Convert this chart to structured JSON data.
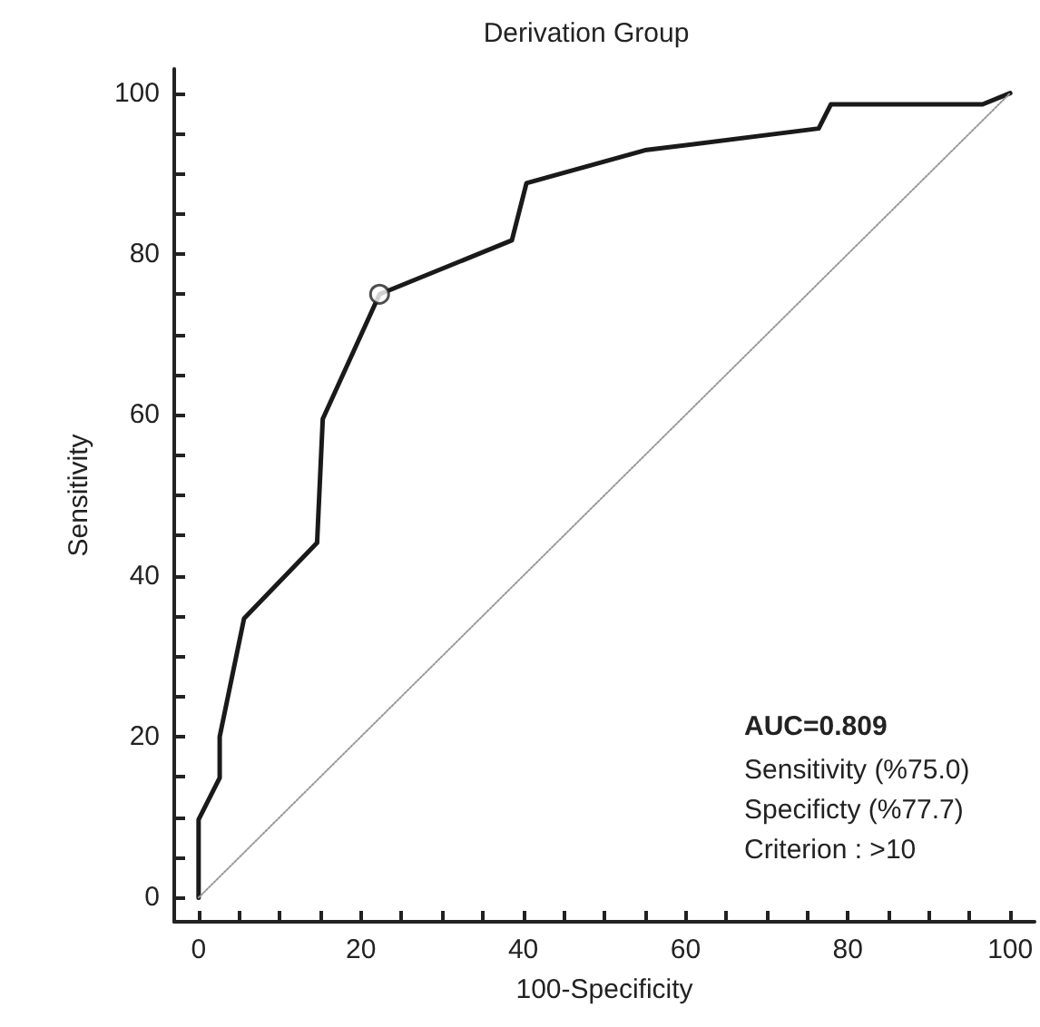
{
  "chart_data": {
    "type": "line",
    "title": "Derivation Group",
    "xlabel": "100-Specificity",
    "ylabel": "Sensitivity",
    "xlim": [
      -3,
      103
    ],
    "ylim": [
      -3,
      103
    ],
    "xticks": [
      0,
      {
        "value": 5,
        "label": null
      },
      {
        "value": 10,
        "label": null
      },
      {
        "value": 15,
        "label": null
      },
      20,
      {
        "value": 25,
        "label": null
      },
      {
        "value": 30,
        "label": null
      },
      {
        "value": 35,
        "label": null
      },
      40,
      {
        "value": 45,
        "label": null
      },
      {
        "value": 50,
        "label": null
      },
      {
        "value": 55,
        "label": null
      },
      60,
      {
        "value": 65,
        "label": null
      },
      {
        "value": 70,
        "label": null
      },
      {
        "value": 75,
        "label": null
      },
      80,
      {
        "value": 85,
        "label": null
      },
      {
        "value": 90,
        "label": null
      },
      {
        "value": 95,
        "label": null
      },
      100
    ],
    "yticks": [
      0,
      {
        "value": 5,
        "label": null
      },
      {
        "value": 10,
        "label": null
      },
      {
        "value": 15,
        "label": null
      },
      20,
      {
        "value": 25,
        "label": null
      },
      {
        "value": 30,
        "label": null
      },
      {
        "value": 35,
        "label": null
      },
      40,
      {
        "value": 45,
        "label": null
      },
      {
        "value": 50,
        "label": null
      },
      {
        "value": 55,
        "label": null
      },
      60,
      {
        "value": 65,
        "label": null
      },
      {
        "value": 70,
        "label": null
      },
      {
        "value": 75,
        "label": null
      },
      80,
      {
        "value": 85,
        "label": null
      },
      {
        "value": 90,
        "label": null
      },
      {
        "value": 95,
        "label": null
      },
      100
    ],
    "marker": "none",
    "line_style": "solid",
    "series": [
      {
        "color": "#1a1a1a",
        "x": [
          0,
          0,
          2.6,
          2.6,
          5.6,
          14.6,
          15.3,
          22.3,
          38.6,
          40.4,
          55,
          76.4,
          77.9,
          96.6,
          100
        ],
        "values": [
          0,
          9.7,
          14.9,
          20,
          34.7,
          44.1,
          59.5,
          75,
          81.7,
          88.8,
          92.9,
          95.6,
          98.6,
          98.6,
          100
        ]
      },
      {
        "type": "line",
        "color": "#999999",
        "line_style": "dotted",
        "x": [
          0,
          100
        ],
        "values": [
          0,
          100
        ]
      },
      {
        "type": "scatter",
        "color": "#ffffff",
        "marker": "circle",
        "x": [
          22.3
        ],
        "values": [
          75
        ]
      }
    ],
    "annotations": [
      "AUC=0.809",
      "Sensitivity (%75.0)",
      "Specificty (%77.7)",
      "Criterion : >10"
    ]
  }
}
